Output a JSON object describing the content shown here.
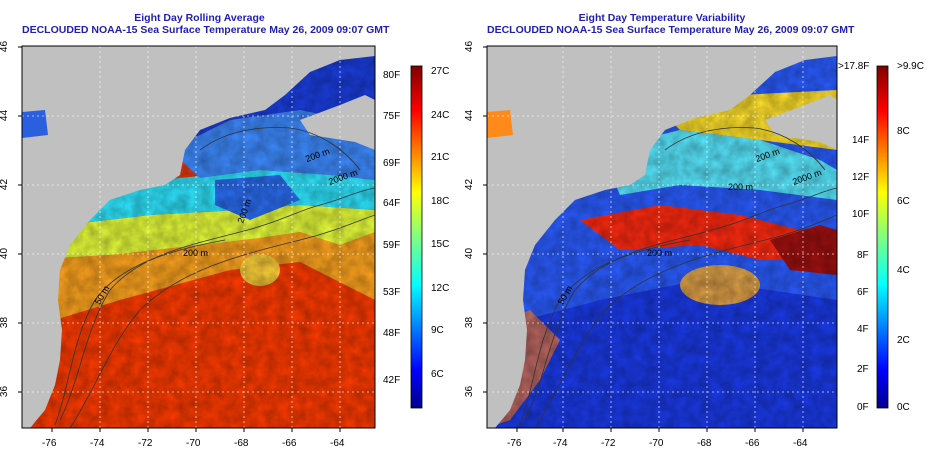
{
  "left_panel": {
    "title_line1": "Eight Day Rolling Average",
    "title_line2": "DECLOUDED NOAA-15 Sea Surface Temperature May 26, 2009 09:07 GMT",
    "x_ticks": [
      "-76",
      "-74",
      "-72",
      "-70",
      "-68",
      "-66",
      "-64"
    ],
    "y_ticks": [
      "36",
      "38",
      "40",
      "42",
      "44",
      "46"
    ],
    "contours": [
      "50 m",
      "200 m",
      "200 m",
      "2000 m",
      "200 m"
    ],
    "colorbar_f": [
      "80F",
      "75F",
      "69F",
      "64F",
      "59F",
      "53F",
      "48F",
      "42F"
    ],
    "colorbar_c": [
      "27C",
      "24C",
      "21C",
      "18C",
      "15C",
      "12C",
      "9C",
      "6C"
    ]
  },
  "right_panel": {
    "title_line1": "Eight Day Temperature Variability",
    "title_line2": "DECLOUDED NOAA-15 Sea Surface Temperature May 26, 2009 09:07 GMT",
    "x_ticks": [
      "-76",
      "-74",
      "-72",
      "-70",
      "-68",
      "-66",
      "-64"
    ],
    "y_ticks": [
      "36",
      "38",
      "40",
      "42",
      "44",
      "46"
    ],
    "contours": [
      "50 m",
      "200 m",
      "200 m",
      "2000 m",
      "200 m"
    ],
    "colorbar_f": [
      ">17.8F",
      "14F",
      "12F",
      "10F",
      "8F",
      "6F",
      "4F",
      "2F",
      "0F"
    ],
    "colorbar_c": [
      ">9.9C",
      "8C",
      "6C",
      "4C",
      "2C",
      "0C"
    ]
  },
  "colors": {
    "land": "#c0c0c0",
    "title": "#1f1fb0",
    "jet": [
      "#00008f",
      "#0000ff",
      "#0080ff",
      "#00ffff",
      "#80ff80",
      "#ffff00",
      "#ff8000",
      "#ff0000",
      "#800000"
    ]
  }
}
